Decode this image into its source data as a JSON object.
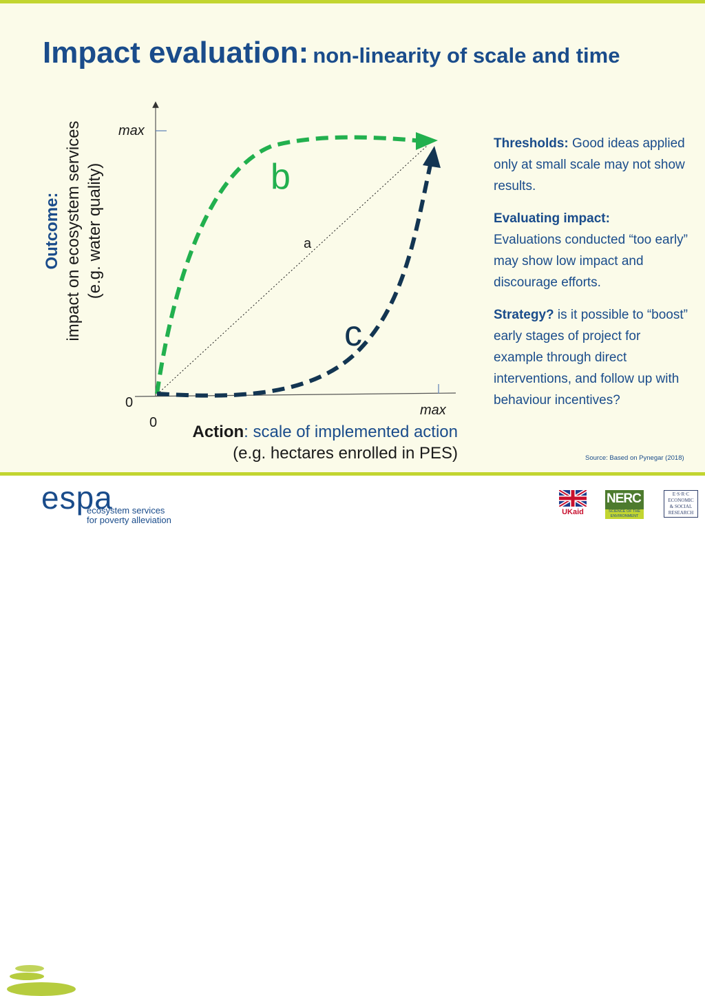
{
  "title": {
    "main": "Impact evaluation:",
    "sub": "non-linearity of scale and time"
  },
  "y_axis": {
    "title": "Outcome:",
    "line1": "impact on ecosystem services",
    "line2": "(e.g. water quality)",
    "max_label": "max",
    "zero_label": "0"
  },
  "x_axis": {
    "title": "Action",
    "rest": ": scale of implemented action",
    "note": "(e.g. hectares enrolled in PES)",
    "max_label": "max",
    "zero_label": "0"
  },
  "curves": [
    {
      "label": "b",
      "color": "#22b04e"
    },
    {
      "label": "a",
      "color": "#1a1a1a"
    },
    {
      "label": "c",
      "color": "#133552"
    }
  ],
  "sidebar": [
    {
      "heading": "Thresholds:",
      "text": "Good ideas applied only at small scale may not show results."
    },
    {
      "heading": "Evaluating impact:",
      "text": "Evaluations conducted “too early” may show low impact and discourage efforts."
    },
    {
      "heading": "Strategy?",
      "text": "is it possible to “boost” early stages of project for example through direct interventions, and follow up with behaviour incentives?"
    }
  ],
  "source": "Source: Based on Pynegar (2018)",
  "footer": {
    "espa_word": "espa",
    "espa_tag1": "ecosystem services",
    "espa_tag2": "for poverty alleviation",
    "ukaid": "UKaid",
    "nerc": "NERC",
    "nerc_tag": "SCIENCE OF THE ENVIRONMENT",
    "esrc_lines": [
      "E·S·R·C",
      "ECONOMIC",
      "& SOCIAL",
      "RESEARCH",
      "COUNCIL"
    ]
  },
  "colors": {
    "accent": "#c2d530",
    "title_blue": "#1a4c8b",
    "curve_b": "#22b04e",
    "curve_c": "#133552"
  }
}
